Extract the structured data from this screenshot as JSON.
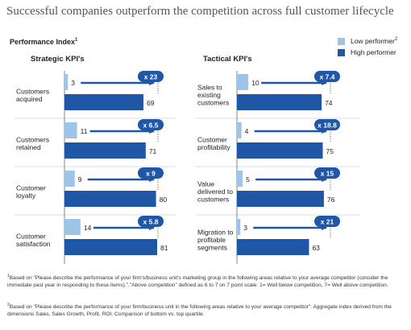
{
  "title": "Successful companies outperform the competition across full customer lifecycle",
  "performance_index_label": "Performance Index",
  "performance_index_note": "1",
  "legend": [
    {
      "label": "Low performer",
      "note": "2",
      "color": "#9ec5e8"
    },
    {
      "label": "High performer",
      "note": "",
      "color": "#1f56a6"
    }
  ],
  "colors": {
    "low": "#9ec5e8",
    "high": "#1f56a6",
    "arrow": "#1f56a6",
    "badge": "#1f56a6"
  },
  "chart_data": [
    {
      "type": "bar",
      "title": "Strategic KPI's",
      "categories": [
        "Customers acquired",
        "Customers retained",
        "Customer loyalty",
        "Customer satisfaction"
      ],
      "category_lines": [
        [
          "Customers",
          "acquired"
        ],
        [
          "Customers",
          "retained"
        ],
        [
          "Customer",
          "loyalty"
        ],
        [
          "Customer",
          "satisfaction"
        ]
      ],
      "series": [
        {
          "name": "Low performer",
          "values": [
            3,
            11,
            9,
            14
          ]
        },
        {
          "name": "High performer",
          "values": [
            69,
            71,
            80,
            81
          ]
        }
      ],
      "multipliers": [
        "x 23",
        "x 6.5",
        "x 9",
        "x 5.8"
      ],
      "xlim": [
        0,
        81
      ]
    },
    {
      "type": "bar",
      "title": "Tactical KPI's",
      "categories": [
        "Sales to existing customers",
        "Customer profitability",
        "Value delivered to customers",
        "Migration to profitable segments"
      ],
      "category_lines": [
        [
          "Sales to",
          "existing",
          "customers"
        ],
        [
          "Customer",
          "profitability"
        ],
        [
          "Value",
          "delivered to",
          "customers"
        ],
        [
          "Migration to",
          "profitable",
          "segments"
        ]
      ],
      "series": [
        {
          "name": "Low performer",
          "values": [
            10,
            4,
            5,
            3
          ]
        },
        {
          "name": "High performer",
          "values": [
            74,
            75,
            76,
            63
          ]
        }
      ],
      "multipliers": [
        "x 7.4",
        "x 18.8",
        "x 15",
        "x 21"
      ],
      "xlim": [
        0,
        81
      ]
    }
  ],
  "footnotes": [
    {
      "mark": "1",
      "text": "Based on \"Please describe the performance of your firm's/business unit's marketing group in the following areas relative to your average competitor (consider the immediate past year in responding to these items).\".\"Above competition\" defined as 6 to 7 on 7 point scale: 1= Well below competition, 7= Well above competition."
    },
    {
      "mark": "2",
      "text": "Based on \"Please describe the performance of your firm/business unit in the following areas relative to your average competitor\": Aggregate index derived from the dimensions Sales, Sales Growth, Profit, ROI. Comparison of bottom vs. top quartile."
    }
  ]
}
